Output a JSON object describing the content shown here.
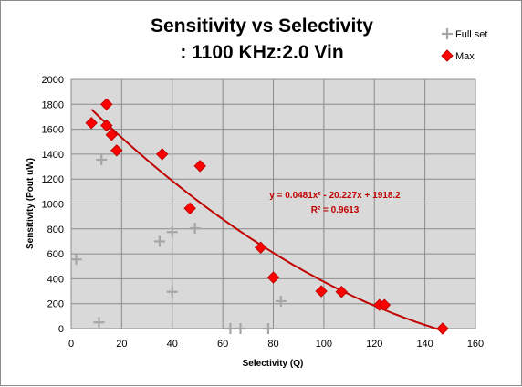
{
  "chart_data": {
    "type": "scatter",
    "title_lines": [
      "Sensitivity vs Selectivity",
      ": 1100 KHz:2.0 Vin"
    ],
    "xlabel": "Selectivity (Q)",
    "ylabel": "Sensitivity (Pout  uW)",
    "xlim": [
      0,
      160
    ],
    "ylim": [
      0,
      2000
    ],
    "x_ticks": [
      0,
      20,
      40,
      60,
      80,
      100,
      120,
      140,
      160
    ],
    "y_ticks": [
      0,
      200,
      400,
      600,
      800,
      1000,
      1200,
      1400,
      1600,
      1800,
      2000
    ],
    "grid": true,
    "plot_background": "#d9d9d9",
    "grid_color": "#8c8c8c",
    "legend_position": "top-right",
    "series": [
      {
        "name": "Full set",
        "marker": "plus",
        "color": "#a6a6a6",
        "points": [
          [
            2,
            555
          ],
          [
            11,
            50
          ],
          [
            12,
            1355
          ],
          [
            35,
            700
          ],
          [
            40,
            775
          ],
          [
            40,
            295
          ],
          [
            49,
            805
          ],
          [
            63,
            0
          ],
          [
            67,
            0
          ],
          [
            78,
            0
          ],
          [
            83,
            220
          ]
        ]
      },
      {
        "name": "Max",
        "marker": "diamond",
        "color": "#ff0000",
        "stroke": "#c00000",
        "points": [
          [
            8,
            1650
          ],
          [
            14,
            1800
          ],
          [
            14,
            1630
          ],
          [
            16,
            1555
          ],
          [
            18,
            1430
          ],
          [
            36,
            1400
          ],
          [
            47,
            965
          ],
          [
            51,
            1305
          ],
          [
            75,
            650
          ],
          [
            80,
            410
          ],
          [
            99,
            300
          ],
          [
            107,
            295
          ],
          [
            122,
            190
          ],
          [
            124,
            190
          ],
          [
            147,
            0
          ]
        ]
      }
    ],
    "trendline": {
      "type": "polynomial",
      "color": "#c00000",
      "coefficients": [
        0.0481,
        -20.227,
        1918.2
      ],
      "x_range": [
        8,
        147
      ],
      "equation_label": "y = 0.0481x² - 20.227x + 1918.2",
      "r2_label": "R² = 0.9613"
    }
  }
}
